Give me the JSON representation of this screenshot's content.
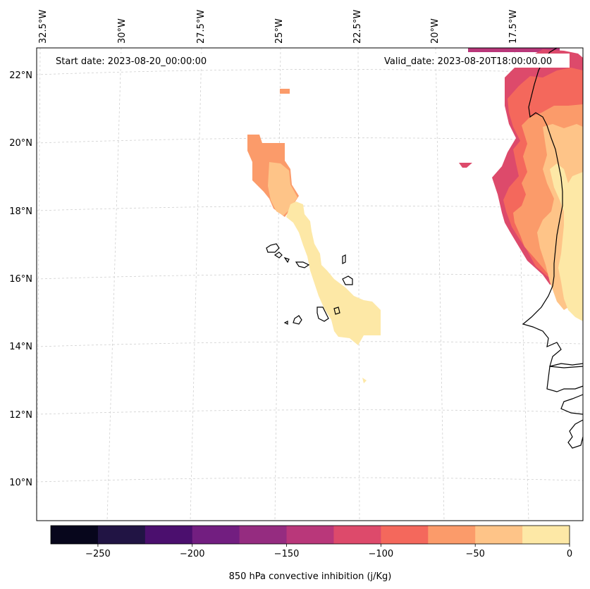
{
  "map": {
    "start_label": "Start date: 2023-08-20_00:00:00",
    "valid_label": "Valid_date: 2023-08-20T18:00:00.00",
    "lon_labels": [
      "32.5°W",
      "30°W",
      "27.5°W",
      "25°W",
      "22.5°W",
      "20°W",
      "17.5°W"
    ],
    "lat_labels": [
      "22°N",
      "20°N",
      "18°N",
      "16°N",
      "14°N",
      "12°N",
      "10°N"
    ]
  },
  "colorbar": {
    "label": "850 hPa convective inhibition (j/Kg)",
    "tick_labels": [
      "−250",
      "−200",
      "−150",
      "−100",
      "−50",
      "0"
    ],
    "min": -275,
    "max": 0,
    "step": 25,
    "colors": [
      "#07061c",
      "#211444",
      "#4b0f6e",
      "#721e80",
      "#952c80",
      "#b9377a",
      "#dd4a6b",
      "#f4685c",
      "#fb9b6a",
      "#fec488",
      "#fde8a6"
    ]
  }
}
